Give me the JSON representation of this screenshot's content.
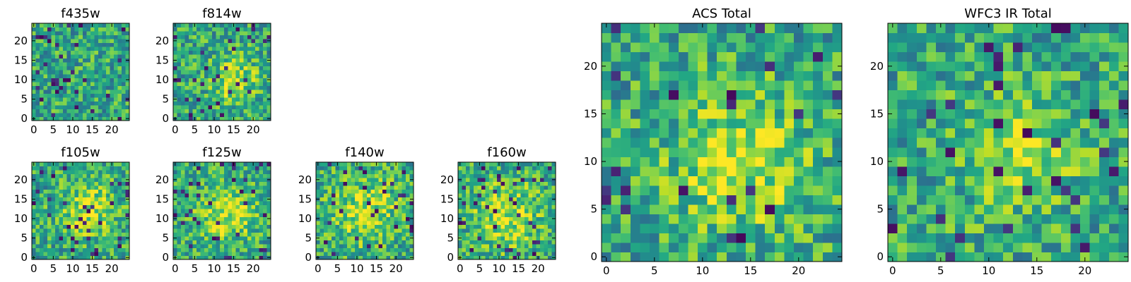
{
  "chart_data": {
    "type": "heatmap",
    "colormap": "viridis",
    "grid": false,
    "size": 25,
    "panels": [
      {
        "id": "f435w",
        "title": "f435w",
        "seed": 11,
        "blob": null,
        "xticks": [
          "0",
          "5",
          "10",
          "15",
          "20"
        ],
        "yticks": [
          "0",
          "5",
          "10",
          "15",
          "20"
        ],
        "xlim": [
          0,
          24
        ],
        "ylim": [
          0,
          24
        ]
      },
      {
        "id": "f814w",
        "title": "f814w",
        "seed": 23,
        "blob": [
          15,
          10,
          4
        ],
        "xticks": [
          "0",
          "5",
          "10",
          "15",
          "20"
        ],
        "yticks": [
          "0",
          "5",
          "10",
          "15",
          "20"
        ],
        "xlim": [
          0,
          24
        ],
        "ylim": [
          0,
          24
        ]
      },
      {
        "id": "f105w",
        "title": "f105w",
        "seed": 37,
        "blob": [
          14,
          12,
          5
        ],
        "xticks": [
          "0",
          "5",
          "10",
          "15",
          "20"
        ],
        "yticks": [
          "0",
          "5",
          "10",
          "15",
          "20"
        ],
        "xlim": [
          0,
          24
        ],
        "ylim": [
          0,
          24
        ]
      },
      {
        "id": "f125w",
        "title": "f125w",
        "seed": 41,
        "blob": [
          13,
          11,
          5
        ],
        "xticks": [
          "0",
          "5",
          "10",
          "15",
          "20"
        ],
        "yticks": [
          "0",
          "5",
          "10",
          "15",
          "20"
        ],
        "xlim": [
          0,
          24
        ],
        "ylim": [
          0,
          24
        ]
      },
      {
        "id": "f140w",
        "title": "f140w",
        "seed": 53,
        "blob": [
          12,
          12,
          6
        ],
        "xticks": [
          "0",
          "5",
          "10",
          "15",
          "20"
        ],
        "yticks": [
          "0",
          "5",
          "10",
          "15",
          "20"
        ],
        "xlim": [
          0,
          24
        ],
        "ylim": [
          0,
          24
        ]
      },
      {
        "id": "f160w",
        "title": "f160w",
        "seed": 67,
        "blob": [
          12,
          11,
          6
        ],
        "xticks": [
          "0",
          "5",
          "10",
          "15",
          "20"
        ],
        "yticks": [
          "0",
          "5",
          "10",
          "15",
          "20"
        ],
        "xlim": [
          0,
          24
        ],
        "ylim": [
          0,
          24
        ]
      },
      {
        "id": "acs_total",
        "title": "ACS Total",
        "seed": 79,
        "blob": [
          14,
          10,
          5
        ],
        "xticks": [
          "0",
          "5",
          "10",
          "15",
          "20"
        ],
        "yticks": [
          "0",
          "5",
          "10",
          "15",
          "20"
        ],
        "xlim": [
          0,
          24
        ],
        "ylim": [
          0,
          24
        ]
      },
      {
        "id": "wfc3_ir_total",
        "title": "WFC3 IR Total",
        "seed": 97,
        "blob": [
          13,
          11,
          4
        ],
        "xticks": [
          "0",
          "5",
          "10",
          "15",
          "20"
        ],
        "yticks": [
          "0",
          "5",
          "10",
          "15",
          "20"
        ],
        "xlim": [
          0,
          24
        ],
        "ylim": [
          0,
          24
        ]
      }
    ]
  }
}
